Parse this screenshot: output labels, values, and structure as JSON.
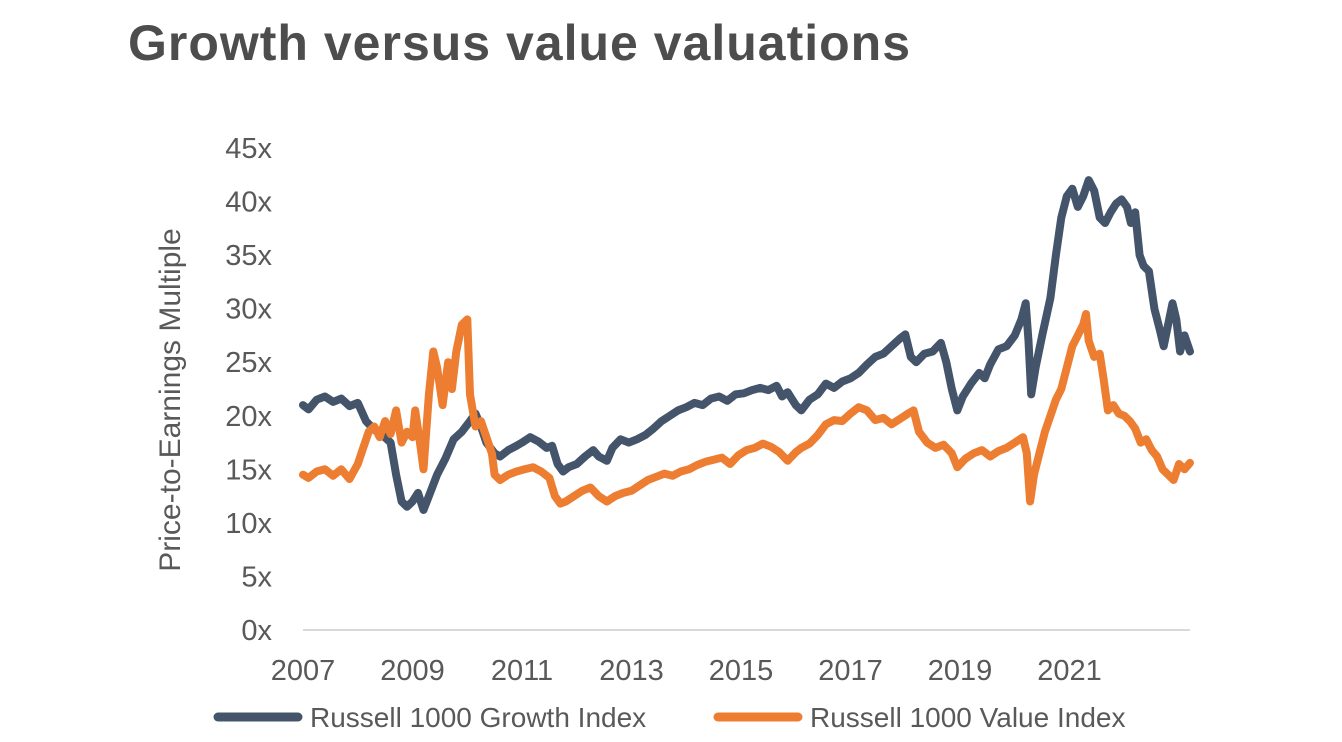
{
  "chart_data": {
    "type": "line",
    "title": "Growth versus value valuations",
    "xlabel": "",
    "ylabel": "Price-to-Earnings Multiple",
    "xlim": [
      2007.0,
      2023.2
    ],
    "ylim": [
      0,
      45
    ],
    "x_ticks": [
      2007,
      2009,
      2011,
      2013,
      2015,
      2017,
      2019,
      2021
    ],
    "x_tick_labels": [
      "2007",
      "2009",
      "2011",
      "2013",
      "2015",
      "2017",
      "2019",
      "2021"
    ],
    "y_ticks": [
      0,
      5,
      10,
      15,
      20,
      25,
      30,
      35,
      40,
      45
    ],
    "y_tick_labels": [
      "0x",
      "5x",
      "10x",
      "15x",
      "20x",
      "25x",
      "30x",
      "35x",
      "40x",
      "45x"
    ],
    "grid": false,
    "legend_position": "bottom",
    "series": [
      {
        "name": "Russell 1000 Growth Index",
        "color": "#44546a",
        "points": [
          [
            2007.0,
            21.0
          ],
          [
            2007.1,
            20.6
          ],
          [
            2007.25,
            21.5
          ],
          [
            2007.4,
            21.8
          ],
          [
            2007.55,
            21.3
          ],
          [
            2007.7,
            21.6
          ],
          [
            2007.85,
            20.9
          ],
          [
            2008.0,
            21.2
          ],
          [
            2008.15,
            19.5
          ],
          [
            2008.3,
            18.7
          ],
          [
            2008.45,
            18.2
          ],
          [
            2008.6,
            17.5
          ],
          [
            2008.7,
            14.5
          ],
          [
            2008.8,
            12.0
          ],
          [
            2008.9,
            11.5
          ],
          [
            2009.0,
            12.0
          ],
          [
            2009.1,
            12.8
          ],
          [
            2009.2,
            11.2
          ],
          [
            2009.3,
            12.5
          ],
          [
            2009.45,
            14.5
          ],
          [
            2009.6,
            16.0
          ],
          [
            2009.75,
            17.8
          ],
          [
            2009.9,
            18.5
          ],
          [
            2010.05,
            19.5
          ],
          [
            2010.15,
            20.2
          ],
          [
            2010.25,
            19.0
          ],
          [
            2010.35,
            17.5
          ],
          [
            2010.5,
            16.5
          ],
          [
            2010.6,
            16.2
          ],
          [
            2010.75,
            16.8
          ],
          [
            2010.9,
            17.2
          ],
          [
            2011.0,
            17.5
          ],
          [
            2011.15,
            18.0
          ],
          [
            2011.3,
            17.6
          ],
          [
            2011.45,
            17.0
          ],
          [
            2011.55,
            17.2
          ],
          [
            2011.65,
            15.5
          ],
          [
            2011.75,
            14.8
          ],
          [
            2011.85,
            15.2
          ],
          [
            2012.0,
            15.5
          ],
          [
            2012.15,
            16.2
          ],
          [
            2012.3,
            16.8
          ],
          [
            2012.4,
            16.2
          ],
          [
            2012.55,
            15.8
          ],
          [
            2012.65,
            17.0
          ],
          [
            2012.8,
            17.8
          ],
          [
            2012.95,
            17.5
          ],
          [
            2013.1,
            17.8
          ],
          [
            2013.25,
            18.2
          ],
          [
            2013.4,
            18.8
          ],
          [
            2013.55,
            19.5
          ],
          [
            2013.7,
            20.0
          ],
          [
            2013.85,
            20.5
          ],
          [
            2014.0,
            20.8
          ],
          [
            2014.15,
            21.2
          ],
          [
            2014.3,
            21.0
          ],
          [
            2014.45,
            21.6
          ],
          [
            2014.6,
            21.8
          ],
          [
            2014.75,
            21.4
          ],
          [
            2014.9,
            22.0
          ],
          [
            2015.05,
            22.1
          ],
          [
            2015.2,
            22.4
          ],
          [
            2015.35,
            22.6
          ],
          [
            2015.5,
            22.4
          ],
          [
            2015.65,
            22.8
          ],
          [
            2015.75,
            21.8
          ],
          [
            2015.85,
            22.2
          ],
          [
            2016.0,
            21.0
          ],
          [
            2016.1,
            20.5
          ],
          [
            2016.25,
            21.5
          ],
          [
            2016.4,
            22.0
          ],
          [
            2016.55,
            23.0
          ],
          [
            2016.7,
            22.6
          ],
          [
            2016.85,
            23.2
          ],
          [
            2017.0,
            23.5
          ],
          [
            2017.15,
            24.0
          ],
          [
            2017.3,
            24.8
          ],
          [
            2017.45,
            25.5
          ],
          [
            2017.6,
            25.8
          ],
          [
            2017.75,
            26.5
          ],
          [
            2017.9,
            27.2
          ],
          [
            2018.0,
            27.6
          ],
          [
            2018.1,
            25.5
          ],
          [
            2018.2,
            25.0
          ],
          [
            2018.35,
            25.8
          ],
          [
            2018.5,
            26.0
          ],
          [
            2018.65,
            26.8
          ],
          [
            2018.75,
            25.0
          ],
          [
            2018.85,
            22.5
          ],
          [
            2018.95,
            20.5
          ],
          [
            2019.05,
            21.8
          ],
          [
            2019.2,
            23.0
          ],
          [
            2019.35,
            24.0
          ],
          [
            2019.45,
            23.5
          ],
          [
            2019.55,
            24.8
          ],
          [
            2019.7,
            26.2
          ],
          [
            2019.85,
            26.5
          ],
          [
            2020.0,
            27.5
          ],
          [
            2020.12,
            29.0
          ],
          [
            2020.2,
            30.5
          ],
          [
            2020.25,
            27.0
          ],
          [
            2020.3,
            22.0
          ],
          [
            2020.38,
            24.5
          ],
          [
            2020.5,
            27.5
          ],
          [
            2020.65,
            31.0
          ],
          [
            2020.75,
            35.0
          ],
          [
            2020.85,
            38.5
          ],
          [
            2020.95,
            40.5
          ],
          [
            2021.05,
            41.2
          ],
          [
            2021.15,
            39.5
          ],
          [
            2021.25,
            40.5
          ],
          [
            2021.35,
            42.0
          ],
          [
            2021.45,
            41.0
          ],
          [
            2021.55,
            38.5
          ],
          [
            2021.65,
            38.0
          ],
          [
            2021.75,
            39.0
          ],
          [
            2021.85,
            39.8
          ],
          [
            2021.95,
            40.2
          ],
          [
            2022.05,
            39.5
          ],
          [
            2022.12,
            38.0
          ],
          [
            2022.2,
            39.0
          ],
          [
            2022.28,
            35.0
          ],
          [
            2022.35,
            34.0
          ],
          [
            2022.45,
            33.5
          ],
          [
            2022.55,
            30.0
          ],
          [
            2022.65,
            28.0
          ],
          [
            2022.72,
            26.5
          ],
          [
            2022.8,
            28.5
          ],
          [
            2022.88,
            30.5
          ],
          [
            2022.95,
            29.0
          ],
          [
            2023.02,
            26.0
          ],
          [
            2023.1,
            27.5
          ],
          [
            2023.2,
            26.0
          ]
        ]
      },
      {
        "name": "Russell 1000 Value Index",
        "color": "#ed7d31",
        "points": [
          [
            2007.0,
            14.5
          ],
          [
            2007.1,
            14.2
          ],
          [
            2007.25,
            14.8
          ],
          [
            2007.4,
            15.0
          ],
          [
            2007.55,
            14.4
          ],
          [
            2007.7,
            15.0
          ],
          [
            2007.85,
            14.1
          ],
          [
            2008.0,
            15.5
          ],
          [
            2008.1,
            17.0
          ],
          [
            2008.2,
            18.5
          ],
          [
            2008.3,
            19.0
          ],
          [
            2008.4,
            18.0
          ],
          [
            2008.5,
            19.5
          ],
          [
            2008.6,
            18.3
          ],
          [
            2008.7,
            20.5
          ],
          [
            2008.75,
            19.0
          ],
          [
            2008.8,
            17.5
          ],
          [
            2008.9,
            18.5
          ],
          [
            2009.0,
            18.0
          ],
          [
            2009.05,
            20.5
          ],
          [
            2009.15,
            17.0
          ],
          [
            2009.2,
            15.0
          ],
          [
            2009.3,
            22.0
          ],
          [
            2009.38,
            26.0
          ],
          [
            2009.45,
            24.5
          ],
          [
            2009.55,
            21.0
          ],
          [
            2009.65,
            25.0
          ],
          [
            2009.72,
            22.5
          ],
          [
            2009.8,
            26.0
          ],
          [
            2009.9,
            28.5
          ],
          [
            2010.0,
            29.0
          ],
          [
            2010.05,
            22.0
          ],
          [
            2010.15,
            19.0
          ],
          [
            2010.25,
            19.5
          ],
          [
            2010.35,
            18.0
          ],
          [
            2010.45,
            16.5
          ],
          [
            2010.5,
            14.5
          ],
          [
            2010.6,
            14.0
          ],
          [
            2010.75,
            14.5
          ],
          [
            2010.9,
            14.8
          ],
          [
            2011.05,
            15.0
          ],
          [
            2011.2,
            15.2
          ],
          [
            2011.35,
            14.8
          ],
          [
            2011.5,
            14.2
          ],
          [
            2011.6,
            12.5
          ],
          [
            2011.7,
            11.8
          ],
          [
            2011.8,
            12.0
          ],
          [
            2011.95,
            12.5
          ],
          [
            2012.1,
            13.0
          ],
          [
            2012.25,
            13.3
          ],
          [
            2012.4,
            12.5
          ],
          [
            2012.55,
            12.0
          ],
          [
            2012.7,
            12.5
          ],
          [
            2012.85,
            12.8
          ],
          [
            2013.0,
            13.0
          ],
          [
            2013.15,
            13.5
          ],
          [
            2013.3,
            14.0
          ],
          [
            2013.45,
            14.3
          ],
          [
            2013.6,
            14.6
          ],
          [
            2013.75,
            14.4
          ],
          [
            2013.9,
            14.8
          ],
          [
            2014.05,
            15.0
          ],
          [
            2014.2,
            15.4
          ],
          [
            2014.35,
            15.7
          ],
          [
            2014.5,
            15.9
          ],
          [
            2014.65,
            16.1
          ],
          [
            2014.8,
            15.5
          ],
          [
            2014.95,
            16.3
          ],
          [
            2015.1,
            16.8
          ],
          [
            2015.25,
            17.0
          ],
          [
            2015.4,
            17.4
          ],
          [
            2015.55,
            17.1
          ],
          [
            2015.7,
            16.6
          ],
          [
            2015.85,
            15.8
          ],
          [
            2016.0,
            16.6
          ],
          [
            2016.1,
            17.0
          ],
          [
            2016.25,
            17.4
          ],
          [
            2016.4,
            18.2
          ],
          [
            2016.55,
            19.2
          ],
          [
            2016.7,
            19.6
          ],
          [
            2016.85,
            19.5
          ],
          [
            2017.0,
            20.2
          ],
          [
            2017.15,
            20.8
          ],
          [
            2017.3,
            20.5
          ],
          [
            2017.45,
            19.6
          ],
          [
            2017.6,
            19.8
          ],
          [
            2017.75,
            19.2
          ],
          [
            2017.9,
            19.7
          ],
          [
            2018.05,
            20.2
          ],
          [
            2018.15,
            20.5
          ],
          [
            2018.25,
            18.5
          ],
          [
            2018.4,
            17.5
          ],
          [
            2018.55,
            17.0
          ],
          [
            2018.7,
            17.3
          ],
          [
            2018.85,
            16.5
          ],
          [
            2018.95,
            15.2
          ],
          [
            2019.1,
            16.0
          ],
          [
            2019.25,
            16.5
          ],
          [
            2019.4,
            16.8
          ],
          [
            2019.55,
            16.2
          ],
          [
            2019.7,
            16.7
          ],
          [
            2019.85,
            17.0
          ],
          [
            2020.0,
            17.5
          ],
          [
            2020.15,
            18.0
          ],
          [
            2020.22,
            16.5
          ],
          [
            2020.28,
            12.0
          ],
          [
            2020.35,
            14.5
          ],
          [
            2020.45,
            16.5
          ],
          [
            2020.55,
            18.5
          ],
          [
            2020.65,
            20.0
          ],
          [
            2020.75,
            21.5
          ],
          [
            2020.85,
            22.5
          ],
          [
            2020.95,
            24.5
          ],
          [
            2021.05,
            26.5
          ],
          [
            2021.15,
            27.5
          ],
          [
            2021.25,
            28.5
          ],
          [
            2021.3,
            29.5
          ],
          [
            2021.35,
            27.0
          ],
          [
            2021.45,
            25.5
          ],
          [
            2021.55,
            25.8
          ],
          [
            2021.62,
            23.5
          ],
          [
            2021.7,
            20.5
          ],
          [
            2021.8,
            21.0
          ],
          [
            2021.9,
            20.2
          ],
          [
            2022.0,
            20.0
          ],
          [
            2022.1,
            19.5
          ],
          [
            2022.2,
            18.8
          ],
          [
            2022.3,
            17.5
          ],
          [
            2022.4,
            17.8
          ],
          [
            2022.5,
            16.8
          ],
          [
            2022.6,
            16.2
          ],
          [
            2022.7,
            15.0
          ],
          [
            2022.8,
            14.5
          ],
          [
            2022.9,
            14.0
          ],
          [
            2023.0,
            15.5
          ],
          [
            2023.1,
            15.0
          ],
          [
            2023.2,
            15.6
          ]
        ]
      }
    ]
  }
}
